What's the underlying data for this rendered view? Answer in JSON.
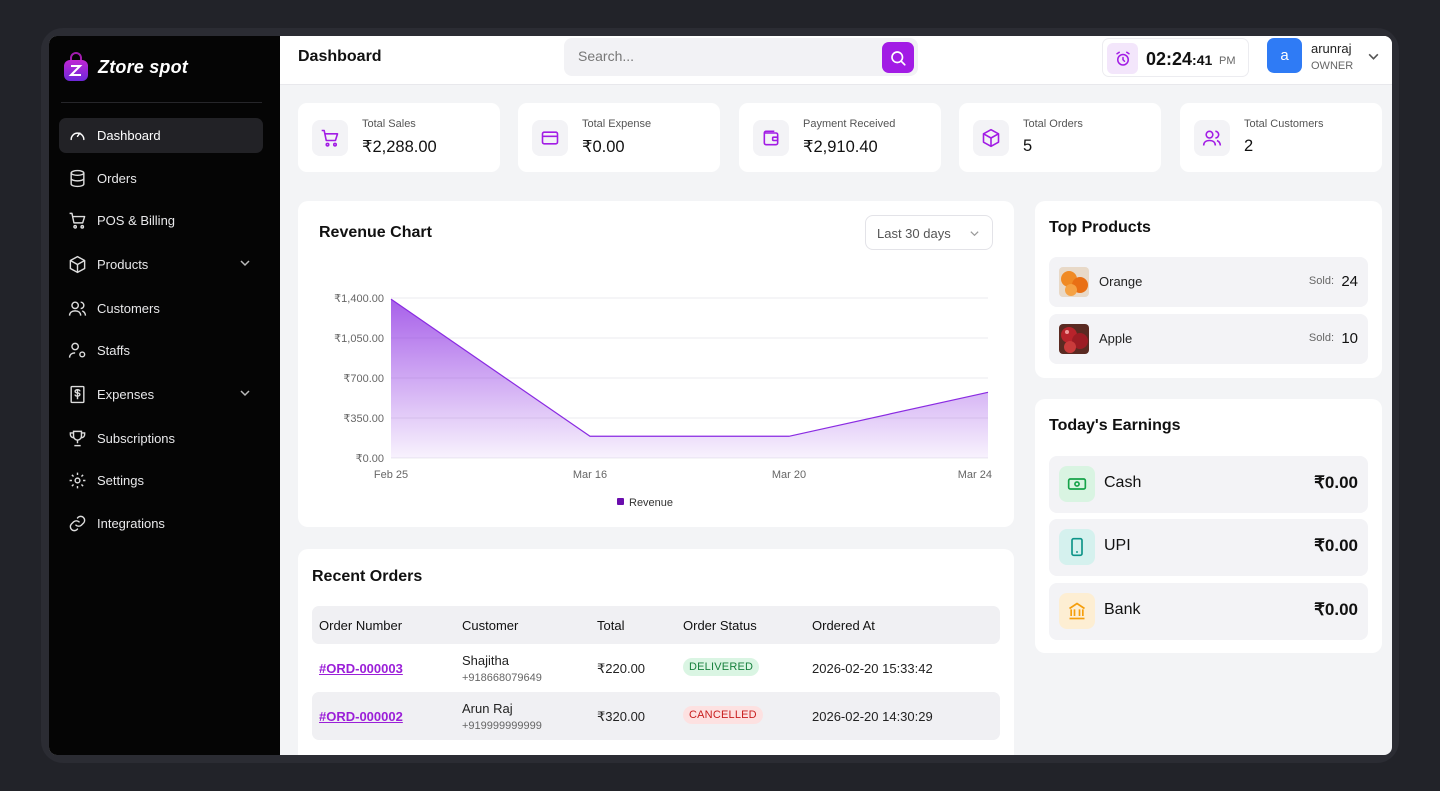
{
  "brand": {
    "name": "Ztore spot"
  },
  "sidebar": {
    "items": [
      {
        "label": "Dashboard",
        "icon": "gauge-icon",
        "active": true
      },
      {
        "label": "Orders",
        "icon": "database-icon"
      },
      {
        "label": "POS & Billing",
        "icon": "cart-icon"
      },
      {
        "label": "Products",
        "icon": "box-icon",
        "has_submenu": true
      },
      {
        "label": "Customers",
        "icon": "users-icon"
      },
      {
        "label": "Staffs",
        "icon": "user-cog-icon"
      },
      {
        "label": "Expenses",
        "icon": "dollar-file-icon",
        "has_submenu": true
      },
      {
        "label": "Subscriptions",
        "icon": "trophy-icon"
      },
      {
        "label": "Settings",
        "icon": "gear-icon"
      },
      {
        "label": "Integrations",
        "icon": "link-icon"
      }
    ]
  },
  "header": {
    "title": "Dashboard",
    "search_placeholder": "Search...",
    "clock": {
      "hm": "02:24",
      "sec": ":41",
      "ampm": "PM"
    },
    "user": {
      "initial": "a",
      "name": "arunraj",
      "role": "OWNER"
    }
  },
  "stats": [
    {
      "label": "Total Sales",
      "value": "₹2,288.00",
      "icon": "cart-icon"
    },
    {
      "label": "Total Expense",
      "value": "₹0.00",
      "icon": "credit-card-icon"
    },
    {
      "label": "Payment Received",
      "value": "₹2,910.40",
      "icon": "wallet-icon"
    },
    {
      "label": "Total Orders",
      "value": "5",
      "icon": "box-icon"
    },
    {
      "label": "Total Customers",
      "value": "2",
      "icon": "users-icon"
    }
  ],
  "revenue": {
    "title": "Revenue Chart",
    "range": "Last 30 days"
  },
  "chart_data": {
    "type": "area",
    "x": [
      "Feb 25",
      "Mar 16",
      "Mar 20",
      "Mar 24"
    ],
    "series": [
      {
        "name": "Revenue",
        "values": [
          1390,
          190,
          190,
          575
        ]
      }
    ],
    "yticks": [
      "₹0.00",
      "₹350.00",
      "₹700.00",
      "₹1,050.00",
      "₹1,400.00"
    ],
    "ylim": [
      0,
      1400
    ],
    "legend": "bottom",
    "color": "#8a2be2"
  },
  "orders": {
    "title": "Recent Orders",
    "columns": [
      "Order Number",
      "Customer",
      "Total",
      "Order Status",
      "Ordered At"
    ],
    "rows": [
      {
        "number": "#ORD-000003",
        "customer": "Shajitha",
        "phone": "+918668079649",
        "total": "₹220.00",
        "status": "DELIVERED",
        "at": "2026-02-20 15:33:42"
      },
      {
        "number": "#ORD-000002",
        "customer": "Arun Raj",
        "phone": "+919999999999",
        "total": "₹320.00",
        "status": "CANCELLED",
        "at": "2026-02-20 14:30:29"
      }
    ]
  },
  "top_products": {
    "title": "Top Products",
    "sold_label": "Sold:",
    "items": [
      {
        "name": "Orange",
        "sold": "24"
      },
      {
        "name": "Apple",
        "sold": "10"
      }
    ]
  },
  "earnings": {
    "title": "Today's Earnings",
    "items": [
      {
        "name": "Cash",
        "value": "₹0.00",
        "icon": "cash-icon",
        "color": "#16a34a"
      },
      {
        "name": "UPI",
        "value": "₹0.00",
        "icon": "phone-icon",
        "color": "#0d9488"
      },
      {
        "name": "Bank",
        "value": "₹0.00",
        "icon": "bank-icon",
        "color": "#f59e0b"
      }
    ]
  }
}
